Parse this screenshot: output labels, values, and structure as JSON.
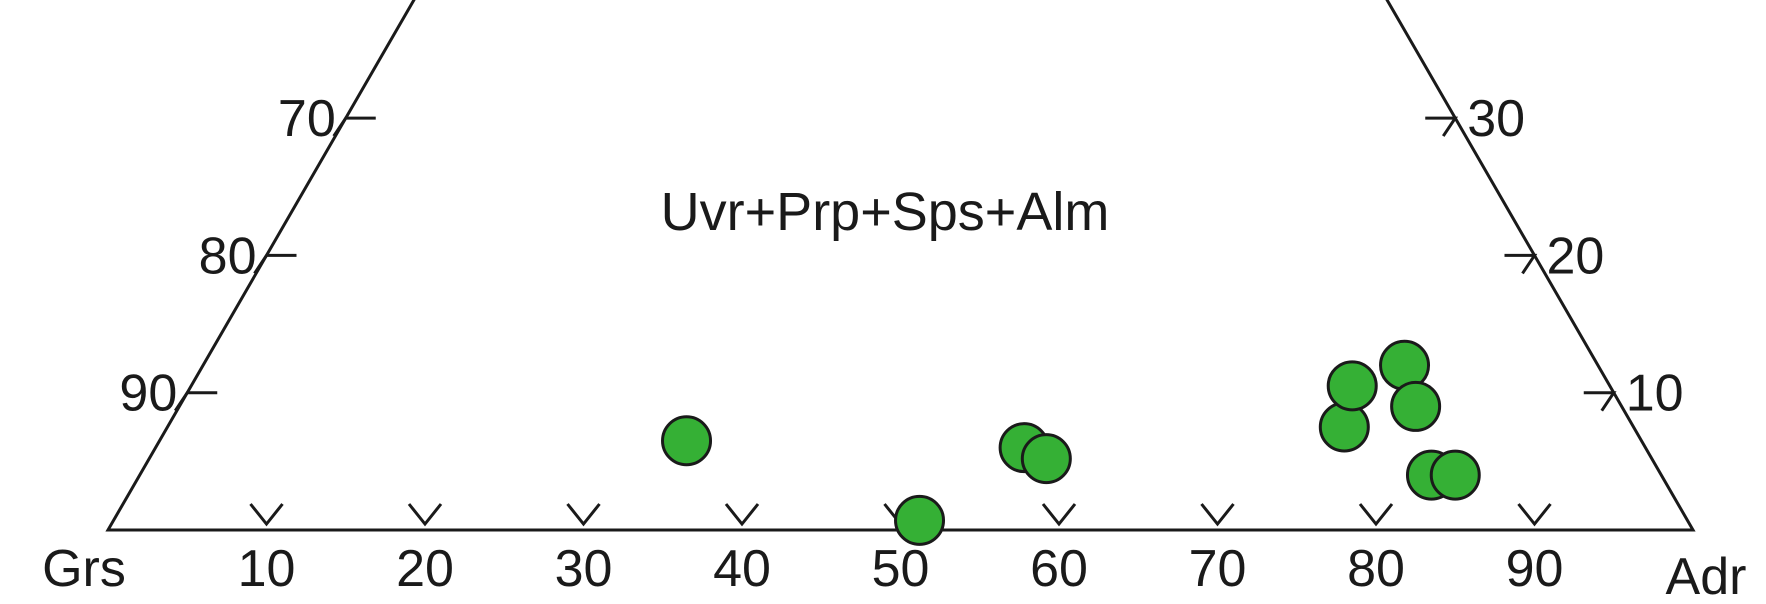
{
  "chart_data": {
    "type": "scatter",
    "subtype": "ternary-truncated",
    "field_label": "Uvr+Prp+Sps+Alm",
    "vertices": {
      "left": "Grs",
      "right": "Adr"
    },
    "axes": {
      "bottom": {
        "ticks": [
          "10",
          "20",
          "30",
          "40",
          "50",
          "60",
          "70",
          "80",
          "90"
        ],
        "range": [
          0,
          100
        ]
      },
      "left": {
        "ticks": [
          "70",
          "80",
          "90"
        ]
      },
      "right": {
        "ticks": [
          "30",
          "20",
          "10"
        ]
      },
      "top_cutoff": 40
    },
    "point_color": "#35b035",
    "points": [
      {
        "x": 36.5,
        "y": 6.5
      },
      {
        "x": 51.2,
        "y": 0.7
      },
      {
        "x": 57.8,
        "y": 6.0
      },
      {
        "x": 59.2,
        "y": 5.2
      },
      {
        "x": 78.0,
        "y": 7.5
      },
      {
        "x": 78.5,
        "y": 10.5
      },
      {
        "x": 81.8,
        "y": 12.0
      },
      {
        "x": 82.5,
        "y": 9.0
      },
      {
        "x": 83.5,
        "y": 4.0
      },
      {
        "x": 85.0,
        "y": 4.0
      }
    ]
  }
}
